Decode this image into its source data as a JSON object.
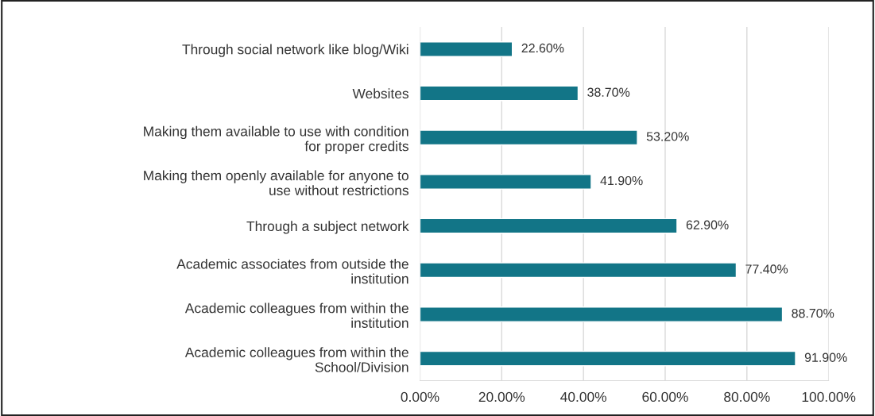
{
  "chart_data": {
    "type": "bar",
    "orientation": "horizontal",
    "categories": [
      "Through social network like blog/Wiki",
      "Websites",
      "Making them available to use with condition\nfor proper credits",
      "Making them openly available for anyone to\nuse without restrictions",
      "Through a subject network",
      "Academic associates from outside the\ninstitution",
      "Academic colleagues from within the\ninstitution",
      "Academic colleagues from within the\nSchool/Division"
    ],
    "values": [
      22.6,
      38.7,
      53.2,
      41.9,
      62.9,
      77.4,
      88.7,
      91.9
    ],
    "value_labels": [
      "22.60%",
      "38.70%",
      "53.20%",
      "41.90%",
      "62.90%",
      "77.40%",
      "88.70%",
      "91.90%"
    ],
    "color": "#127587",
    "xlim": [
      0,
      100
    ],
    "xticks": [
      {
        "value": 0,
        "label": "0.00%"
      },
      {
        "value": 20,
        "label": "20.00%"
      },
      {
        "value": 40,
        "label": "40.00%"
      },
      {
        "value": 60,
        "label": "60.00%"
      },
      {
        "value": 80,
        "label": "80.00%"
      },
      {
        "value": 100,
        "label": "100.00%"
      }
    ],
    "grid": "x"
  }
}
